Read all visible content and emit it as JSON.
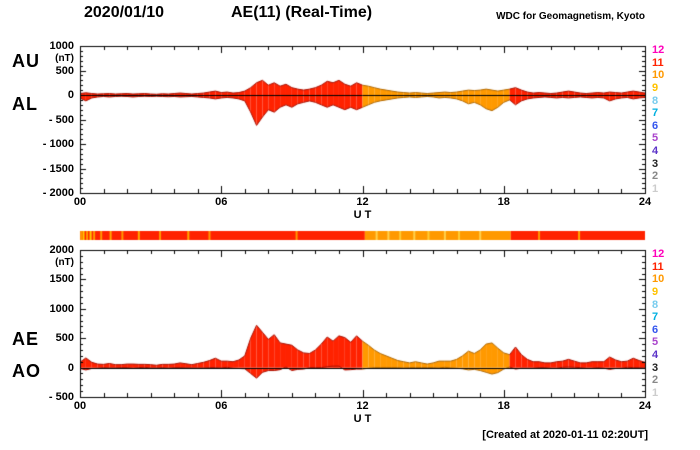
{
  "header": {
    "date": "2020/01/10",
    "title": "AE(11) (Real-Time)",
    "source": "WDC for Geomagnetism, Kyoto"
  },
  "footer": {
    "created": "[Created at 2020-01-11 02:20UT]"
  },
  "legend": {
    "description": "number-of-stations color scale",
    "items": [
      {
        "label": "12",
        "color": "#ff00bb"
      },
      {
        "label": "11",
        "color": "#ff2200"
      },
      {
        "label": "10",
        "color": "#ff9900"
      },
      {
        "label": "9",
        "color": "#ffc200"
      },
      {
        "label": "8",
        "color": "#77ccee"
      },
      {
        "label": "7",
        "color": "#00b0e0"
      },
      {
        "label": "6",
        "color": "#3355ee"
      },
      {
        "label": "5",
        "color": "#aa44cc"
      },
      {
        "label": "4",
        "color": "#5b33c8"
      },
      {
        "label": "3",
        "color": "#222222"
      },
      {
        "label": "2",
        "color": "#888888"
      },
      {
        "label": "1",
        "color": "#cccccc"
      }
    ]
  },
  "panels": [
    {
      "left_labels": [
        "AU",
        "AL"
      ],
      "unit": "(nT)",
      "ylim": [
        1000,
        -2000
      ],
      "yticks": [
        {
          "v": 1000,
          "label": "1000"
        },
        {
          "v": 500,
          "label": "500"
        },
        {
          "v": 0,
          "label": "0"
        },
        {
          "v": -500,
          "label": "- 500"
        },
        {
          "v": -1000,
          "label": "- 1000"
        },
        {
          "v": -1500,
          "label": "- 1500"
        },
        {
          "v": -2000,
          "label": "- 2000"
        }
      ],
      "xticks": [
        "00",
        "06",
        "12",
        "18",
        "24"
      ],
      "xlabel": "U T"
    },
    {
      "left_labels": [
        "AE",
        "AO"
      ],
      "unit": "(nT)",
      "ylim": [
        2000,
        -500
      ],
      "yticks": [
        {
          "v": 2000,
          "label": "2000"
        },
        {
          "v": 1500,
          "label": "1500"
        },
        {
          "v": 1000,
          "label": "1000"
        },
        {
          "v": 500,
          "label": "500"
        },
        {
          "v": 0,
          "label": "0"
        },
        {
          "v": -500,
          "label": "- 500"
        }
      ],
      "xticks": [
        "00",
        "06",
        "12",
        "18",
        "24"
      ],
      "xlabel": "U T"
    }
  ],
  "chart_data": {
    "type": "area",
    "title": "AE(11) (Real-Time) 2020/01/10",
    "x_unit": "hours UT",
    "x_start": 0,
    "x_step": 0.25,
    "x_end": 24,
    "panels": [
      {
        "series": [
          "AU",
          "AL"
        ],
        "ylim": [
          1000,
          -2000
        ]
      },
      {
        "series": [
          "AE",
          "AO"
        ],
        "ylim": [
          2000,
          -500
        ]
      }
    ],
    "series": [
      {
        "name": "AU",
        "panel": 0,
        "values": [
          30,
          45,
          30,
          20,
          25,
          30,
          20,
          25,
          30,
          20,
          25,
          30,
          20,
          15,
          25,
          20,
          30,
          40,
          30,
          20,
          30,
          40,
          60,
          80,
          50,
          60,
          40,
          50,
          80,
          150,
          250,
          300,
          200,
          250,
          180,
          220,
          150,
          120,
          100,
          120,
          150,
          200,
          280,
          250,
          300,
          220,
          180,
          250,
          200,
          180,
          150,
          120,
          100,
          80,
          60,
          50,
          40,
          50,
          40,
          30,
          40,
          50,
          60,
          50,
          60,
          80,
          100,
          90,
          100,
          120,
          100,
          80,
          100,
          120,
          150,
          100,
          60,
          40,
          50,
          40,
          30,
          40,
          60,
          80,
          60,
          40,
          30,
          40,
          50,
          40,
          60,
          50,
          40,
          60,
          80,
          60,
          40
        ]
      },
      {
        "name": "AL",
        "panel": 0,
        "values": [
          -60,
          -120,
          -60,
          -40,
          -30,
          -40,
          -30,
          -25,
          -30,
          -40,
          -30,
          -25,
          -30,
          -25,
          -30,
          -35,
          -30,
          -40,
          -35,
          -30,
          -40,
          -50,
          -60,
          -80,
          -60,
          -50,
          -60,
          -80,
          -120,
          -350,
          -620,
          -450,
          -300,
          -350,
          -250,
          -200,
          -250,
          -180,
          -150,
          -120,
          -150,
          -200,
          -250,
          -200,
          -250,
          -300,
          -250,
          -300,
          -250,
          -200,
          -150,
          -120,
          -100,
          -80,
          -60,
          -50,
          -40,
          -50,
          -40,
          -30,
          -40,
          -60,
          -50,
          -60,
          -80,
          -120,
          -180,
          -150,
          -200,
          -280,
          -320,
          -250,
          -150,
          -100,
          -200,
          -120,
          -80,
          -60,
          -50,
          -40,
          -50,
          -60,
          -50,
          -60,
          -50,
          -40,
          -50,
          -60,
          -50,
          -60,
          -120,
          -80,
          -60,
          -50,
          -80,
          -60,
          -50
        ]
      },
      {
        "name": "AE",
        "panel": 1,
        "values": [
          90,
          165,
          90,
          60,
          55,
          70,
          50,
          50,
          60,
          60,
          55,
          55,
          50,
          40,
          55,
          55,
          60,
          80,
          65,
          50,
          70,
          90,
          120,
          160,
          110,
          110,
          100,
          130,
          200,
          500,
          720,
          600,
          480,
          560,
          420,
          400,
          380,
          300,
          250,
          240,
          300,
          400,
          520,
          450,
          540,
          510,
          430,
          540,
          450,
          380,
          300,
          240,
          200,
          160,
          120,
          100,
          80,
          100,
          80,
          60,
          80,
          110,
          110,
          110,
          140,
          200,
          280,
          240,
          300,
          400,
          420,
          330,
          250,
          220,
          350,
          220,
          140,
          100,
          100,
          80,
          80,
          100,
          110,
          140,
          110,
          80,
          80,
          100,
          100,
          100,
          180,
          130,
          100,
          110,
          160,
          120,
          90
        ]
      },
      {
        "name": "AO",
        "panel": 1,
        "values": [
          -15,
          -40,
          -15,
          -10,
          0,
          -5,
          -5,
          0,
          0,
          -10,
          0,
          5,
          -5,
          -5,
          0,
          -8,
          0,
          0,
          -3,
          -5,
          -5,
          -5,
          0,
          0,
          -5,
          5,
          -10,
          -15,
          -20,
          -100,
          -180,
          -80,
          -50,
          -50,
          -35,
          10,
          -50,
          -30,
          -25,
          0,
          0,
          0,
          15,
          25,
          25,
          -40,
          -35,
          -25,
          -25,
          -10,
          0,
          0,
          0,
          0,
          0,
          -5,
          0,
          0,
          0,
          0,
          0,
          -5,
          5,
          -5,
          -10,
          -20,
          -40,
          -30,
          -50,
          -80,
          -110,
          -85,
          -25,
          10,
          -25,
          -10,
          -10,
          -10,
          0,
          0,
          -10,
          -10,
          5,
          10,
          5,
          0,
          -10,
          -10,
          0,
          -10,
          -30,
          -15,
          -10,
          5,
          0,
          0,
          -5
        ]
      }
    ],
    "station_segments": [
      {
        "start": 0,
        "end": 12.1,
        "stations": 11,
        "color": "#ff2200",
        "edge": "#a81000"
      },
      {
        "start": 12.1,
        "end": 18.3,
        "stations": 10,
        "color": "#ff9900",
        "edge": "#b06800"
      },
      {
        "start": 18.3,
        "end": 24,
        "stations": 11,
        "color": "#ff2200",
        "edge": "#a81000"
      }
    ],
    "station_flecks": [
      {
        "t": 0.05,
        "color": "#ff9900"
      },
      {
        "t": 0.15,
        "color": "#ffcc00"
      },
      {
        "t": 0.3,
        "color": "#ff9900"
      },
      {
        "t": 0.45,
        "color": "#ffcc00"
      },
      {
        "t": 0.6,
        "color": "#ff9900"
      },
      {
        "t": 0.9,
        "color": "#ff9900"
      },
      {
        "t": 1.3,
        "color": "#ffaa00"
      },
      {
        "t": 1.8,
        "color": "#ff9900"
      },
      {
        "t": 2.5,
        "color": "#ffaa00"
      },
      {
        "t": 3.4,
        "color": "#ff9900"
      },
      {
        "t": 4.6,
        "color": "#ffaa00"
      },
      {
        "t": 5.5,
        "color": "#ff9900"
      },
      {
        "t": 9.2,
        "color": "#ff9900"
      },
      {
        "t": 12.6,
        "color": "#ffd24d"
      },
      {
        "t": 13.1,
        "color": "#ffd24d"
      },
      {
        "t": 13.6,
        "color": "#ffcc33"
      },
      {
        "t": 14.2,
        "color": "#ffd24d"
      },
      {
        "t": 14.8,
        "color": "#ffcc33"
      },
      {
        "t": 15.5,
        "color": "#ffd24d"
      },
      {
        "t": 16.1,
        "color": "#ffcc33"
      },
      {
        "t": 17.0,
        "color": "#ffd24d"
      },
      {
        "t": 19.5,
        "color": "#ff9900"
      },
      {
        "t": 21.2,
        "color": "#ffaa00"
      }
    ]
  }
}
